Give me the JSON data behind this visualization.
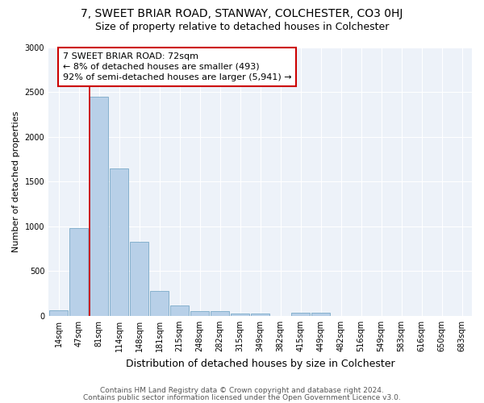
{
  "title": "7, SWEET BRIAR ROAD, STANWAY, COLCHESTER, CO3 0HJ",
  "subtitle": "Size of property relative to detached houses in Colchester",
  "xlabel": "Distribution of detached houses by size in Colchester",
  "ylabel": "Number of detached properties",
  "categories": [
    "14sqm",
    "47sqm",
    "81sqm",
    "114sqm",
    "148sqm",
    "181sqm",
    "215sqm",
    "248sqm",
    "282sqm",
    "315sqm",
    "349sqm",
    "382sqm",
    "415sqm",
    "449sqm",
    "482sqm",
    "516sqm",
    "549sqm",
    "583sqm",
    "616sqm",
    "650sqm",
    "683sqm"
  ],
  "values": [
    60,
    980,
    2450,
    1650,
    825,
    275,
    120,
    55,
    55,
    30,
    25,
    0,
    35,
    35,
    0,
    0,
    0,
    0,
    0,
    0,
    0
  ],
  "bar_color": "#b8d0e8",
  "bar_edgecolor": "#7aaac8",
  "vline_x_index": 2,
  "vline_color": "#cc0000",
  "annotation_text": "7 SWEET BRIAR ROAD: 72sqm\n← 8% of detached houses are smaller (493)\n92% of semi-detached houses are larger (5,941) →",
  "annotation_box_edgecolor": "#cc0000",
  "annotation_box_facecolor": "#ffffff",
  "footer_line1": "Contains HM Land Registry data © Crown copyright and database right 2024.",
  "footer_line2": "Contains public sector information licensed under the Open Government Licence v3.0.",
  "ylim": [
    0,
    3000
  ],
  "yticks": [
    0,
    500,
    1000,
    1500,
    2000,
    2500,
    3000
  ],
  "background_color": "#edf2f9",
  "title_fontsize": 10,
  "subtitle_fontsize": 9,
  "xlabel_fontsize": 9,
  "ylabel_fontsize": 8,
  "tick_fontsize": 7,
  "footer_fontsize": 6.5,
  "ann_fontsize": 8
}
